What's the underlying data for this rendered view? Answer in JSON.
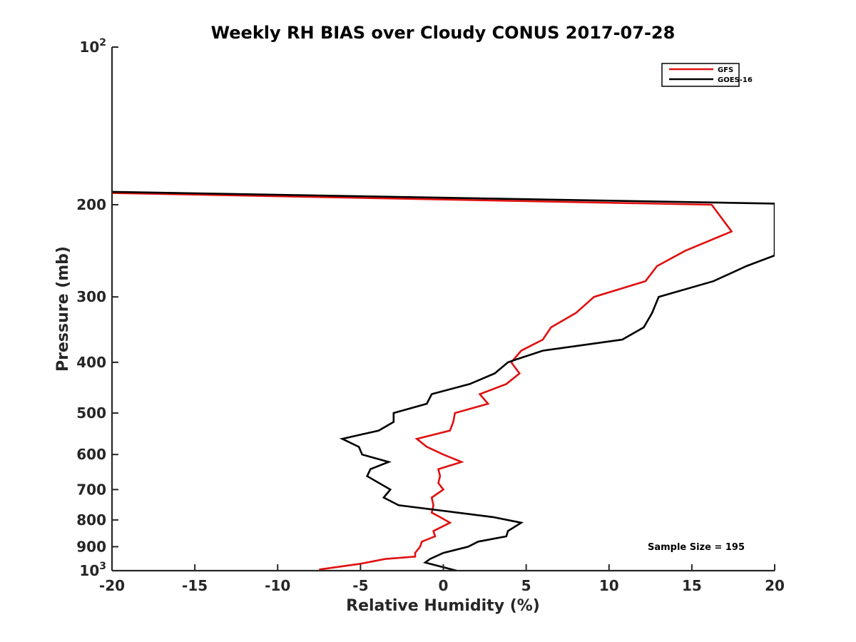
{
  "chart_data": {
    "type": "line",
    "title": "Weekly RH BIAS over Cloudy CONUS 2017-07-28",
    "xlabel": "Relative Humidity (%)",
    "ylabel": "Pressure (mb)",
    "xlim": [
      -20,
      20
    ],
    "ylim": [
      100,
      1000
    ],
    "y_scale": "log",
    "y_reversed": true,
    "xticks": [
      -20,
      -15,
      -10,
      -5,
      0,
      5,
      10,
      15,
      20
    ],
    "yticks": [
      {
        "value": 100,
        "base": "10",
        "exp": "2"
      },
      {
        "value": 200,
        "label": "200"
      },
      {
        "value": 300,
        "label": "300"
      },
      {
        "value": 400,
        "label": "400"
      },
      {
        "value": 500,
        "label": "500"
      },
      {
        "value": 600,
        "label": "600"
      },
      {
        "value": 700,
        "label": "700"
      },
      {
        "value": 800,
        "label": "800"
      },
      {
        "value": 900,
        "label": "900"
      },
      {
        "value": 1000,
        "base": "10",
        "exp": "3"
      }
    ],
    "grid": false,
    "legend_position": "top-right",
    "annotation": "Sample Size = 195",
    "series": [
      {
        "name": "GFS",
        "color": "#e01010",
        "points": [
          [
            -20.0,
            190
          ],
          [
            16.2,
            200
          ],
          [
            17.4,
            225
          ],
          [
            14.6,
            245
          ],
          [
            12.9,
            262
          ],
          [
            12.2,
            280
          ],
          [
            9.1,
            300
          ],
          [
            8.0,
            322
          ],
          [
            6.5,
            343
          ],
          [
            6.0,
            362
          ],
          [
            4.7,
            380
          ],
          [
            4.1,
            400
          ],
          [
            4.6,
            420
          ],
          [
            3.8,
            440
          ],
          [
            2.2,
            460
          ],
          [
            2.7,
            480
          ],
          [
            0.7,
            500
          ],
          [
            0.6,
            520
          ],
          [
            0.4,
            540
          ],
          [
            -1.6,
            560
          ],
          [
            -1.0,
            580
          ],
          [
            0.0,
            600
          ],
          [
            1.1,
            620
          ],
          [
            -0.3,
            640
          ],
          [
            -0.2,
            660
          ],
          [
            -0.3,
            680
          ],
          [
            0.0,
            700
          ],
          [
            -0.7,
            725
          ],
          [
            -0.6,
            750
          ],
          [
            -0.7,
            775
          ],
          [
            -0.2,
            790
          ],
          [
            0.4,
            810
          ],
          [
            -0.6,
            840
          ],
          [
            -0.5,
            860
          ],
          [
            -1.3,
            880
          ],
          [
            -1.4,
            900
          ],
          [
            -1.7,
            925
          ],
          [
            -1.7,
            940
          ],
          [
            -3.5,
            950
          ],
          [
            -5.0,
            970
          ],
          [
            -7.5,
            995
          ]
        ]
      },
      {
        "name": "GOES-16",
        "color": "#000000",
        "points": [
          [
            -20.0,
            189
          ],
          [
            20.0,
            199
          ],
          [
            20.0,
            250
          ],
          [
            18.3,
            262
          ],
          [
            16.3,
            280
          ],
          [
            13.0,
            300
          ],
          [
            12.6,
            322
          ],
          [
            12.1,
            343
          ],
          [
            10.8,
            362
          ],
          [
            6.0,
            380
          ],
          [
            4.4,
            395
          ],
          [
            3.9,
            400
          ],
          [
            3.1,
            420
          ],
          [
            1.6,
            440
          ],
          [
            -0.7,
            460
          ],
          [
            -1.0,
            480
          ],
          [
            -3.0,
            500
          ],
          [
            -3.0,
            520
          ],
          [
            -3.9,
            540
          ],
          [
            -6.1,
            560
          ],
          [
            -5.1,
            580
          ],
          [
            -4.9,
            600
          ],
          [
            -3.3,
            620
          ],
          [
            -4.4,
            640
          ],
          [
            -4.6,
            660
          ],
          [
            -3.2,
            700
          ],
          [
            -3.6,
            725
          ],
          [
            -2.7,
            750
          ],
          [
            3.0,
            790
          ],
          [
            4.7,
            810
          ],
          [
            3.9,
            840
          ],
          [
            3.8,
            860
          ],
          [
            2.1,
            880
          ],
          [
            1.5,
            900
          ],
          [
            0.0,
            925
          ],
          [
            -0.8,
            950
          ],
          [
            -1.1,
            965
          ],
          [
            0.8,
            1000
          ]
        ]
      }
    ]
  }
}
